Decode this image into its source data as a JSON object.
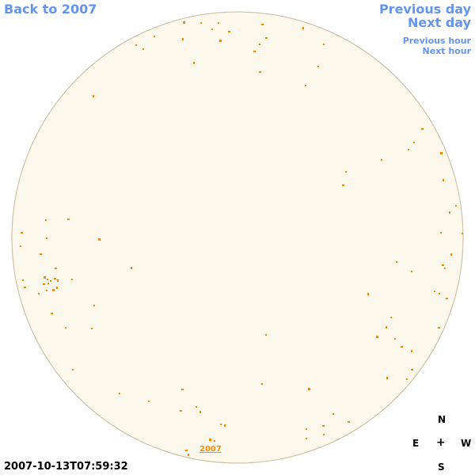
{
  "nav": {
    "back": "Back to 2007",
    "prev_day": "Previous day",
    "next_day": "Next day",
    "prev_hour": "Previous hour",
    "next_hour": "Next hour"
  },
  "timestamp": "2007-10-13T07:59:32",
  "year_link": "2007",
  "compass": {
    "north": "N",
    "east": "E",
    "west": "W",
    "south": "S",
    "center": "+"
  },
  "colors": {
    "disk_fill": "#fdf8ec",
    "disk_edge": "#c8b89a",
    "feature": "#f08c00",
    "link": "#6495ed"
  }
}
